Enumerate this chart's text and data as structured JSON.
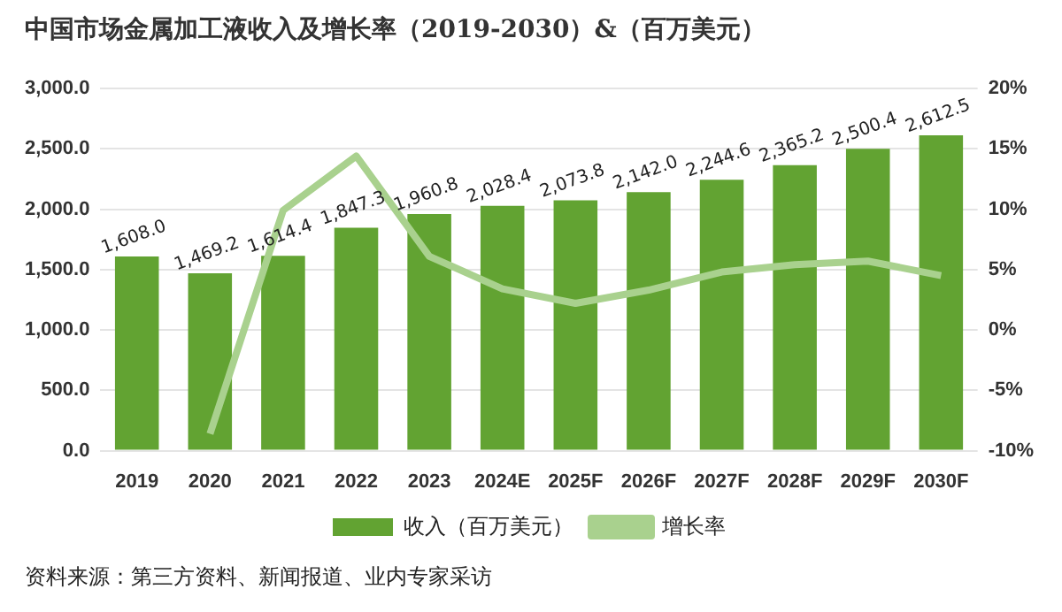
{
  "chart_data": {
    "type": "bar",
    "title": "中国市场金属加工液收入及增长率（2019-2030）&（百万美元）",
    "categories": [
      "2019",
      "2020",
      "2021",
      "2022",
      "2023",
      "2024E",
      "2025F",
      "2026F",
      "2027F",
      "2028F",
      "2029F",
      "2030F"
    ],
    "series": [
      {
        "name": "收入（百万美元）",
        "color": "#62a332",
        "values": [
          1608.0,
          1469.2,
          1614.4,
          1847.3,
          1960.8,
          2028.4,
          2073.8,
          2142.0,
          2244.6,
          2365.2,
          2500.4,
          2612.5
        ],
        "value_labels": [
          "1,608.0",
          "1,469.2",
          "1,614.4",
          "1,847.3",
          "1,960.8",
          "2,028.4",
          "2,073.8",
          "2,142.0",
          "2,244.6",
          "2,365.2",
          "2,500.4",
          "2,612.5"
        ]
      },
      {
        "name": "增长率",
        "type": "line",
        "axis": "y2",
        "color": "#a9d18e",
        "marker": "none",
        "values": [
          null,
          -8.6,
          9.9,
          14.4,
          6.1,
          3.4,
          2.2,
          3.3,
          4.8,
          5.4,
          5.7,
          4.5
        ]
      }
    ],
    "ylim": [
      0,
      3000
    ],
    "yticks": [
      {
        "value": 0,
        "label": "0.0"
      },
      {
        "value": 500,
        "label": "500.0"
      },
      {
        "value": 1000,
        "label": "1,000.0"
      },
      {
        "value": 1500,
        "label": "1,500.0"
      },
      {
        "value": 2000,
        "label": "2,000.0"
      },
      {
        "value": 2500,
        "label": "2,500.0"
      },
      {
        "value": 3000,
        "label": "3,000.0"
      }
    ],
    "y2lim": [
      -10,
      20
    ],
    "y2ticks": [
      {
        "value": -10,
        "label": "-10%"
      },
      {
        "value": -5,
        "label": "-5%"
      },
      {
        "value": 0,
        "label": "0%"
      },
      {
        "value": 5,
        "label": "5%"
      },
      {
        "value": 10,
        "label": "10%"
      },
      {
        "value": 15,
        "label": "15%"
      },
      {
        "value": 20,
        "label": "20%"
      }
    ],
    "grid": "y",
    "legend": "bottom",
    "annotations": [
      "资料来源：第三方资料、新闻报道、业内专家采访"
    ]
  }
}
